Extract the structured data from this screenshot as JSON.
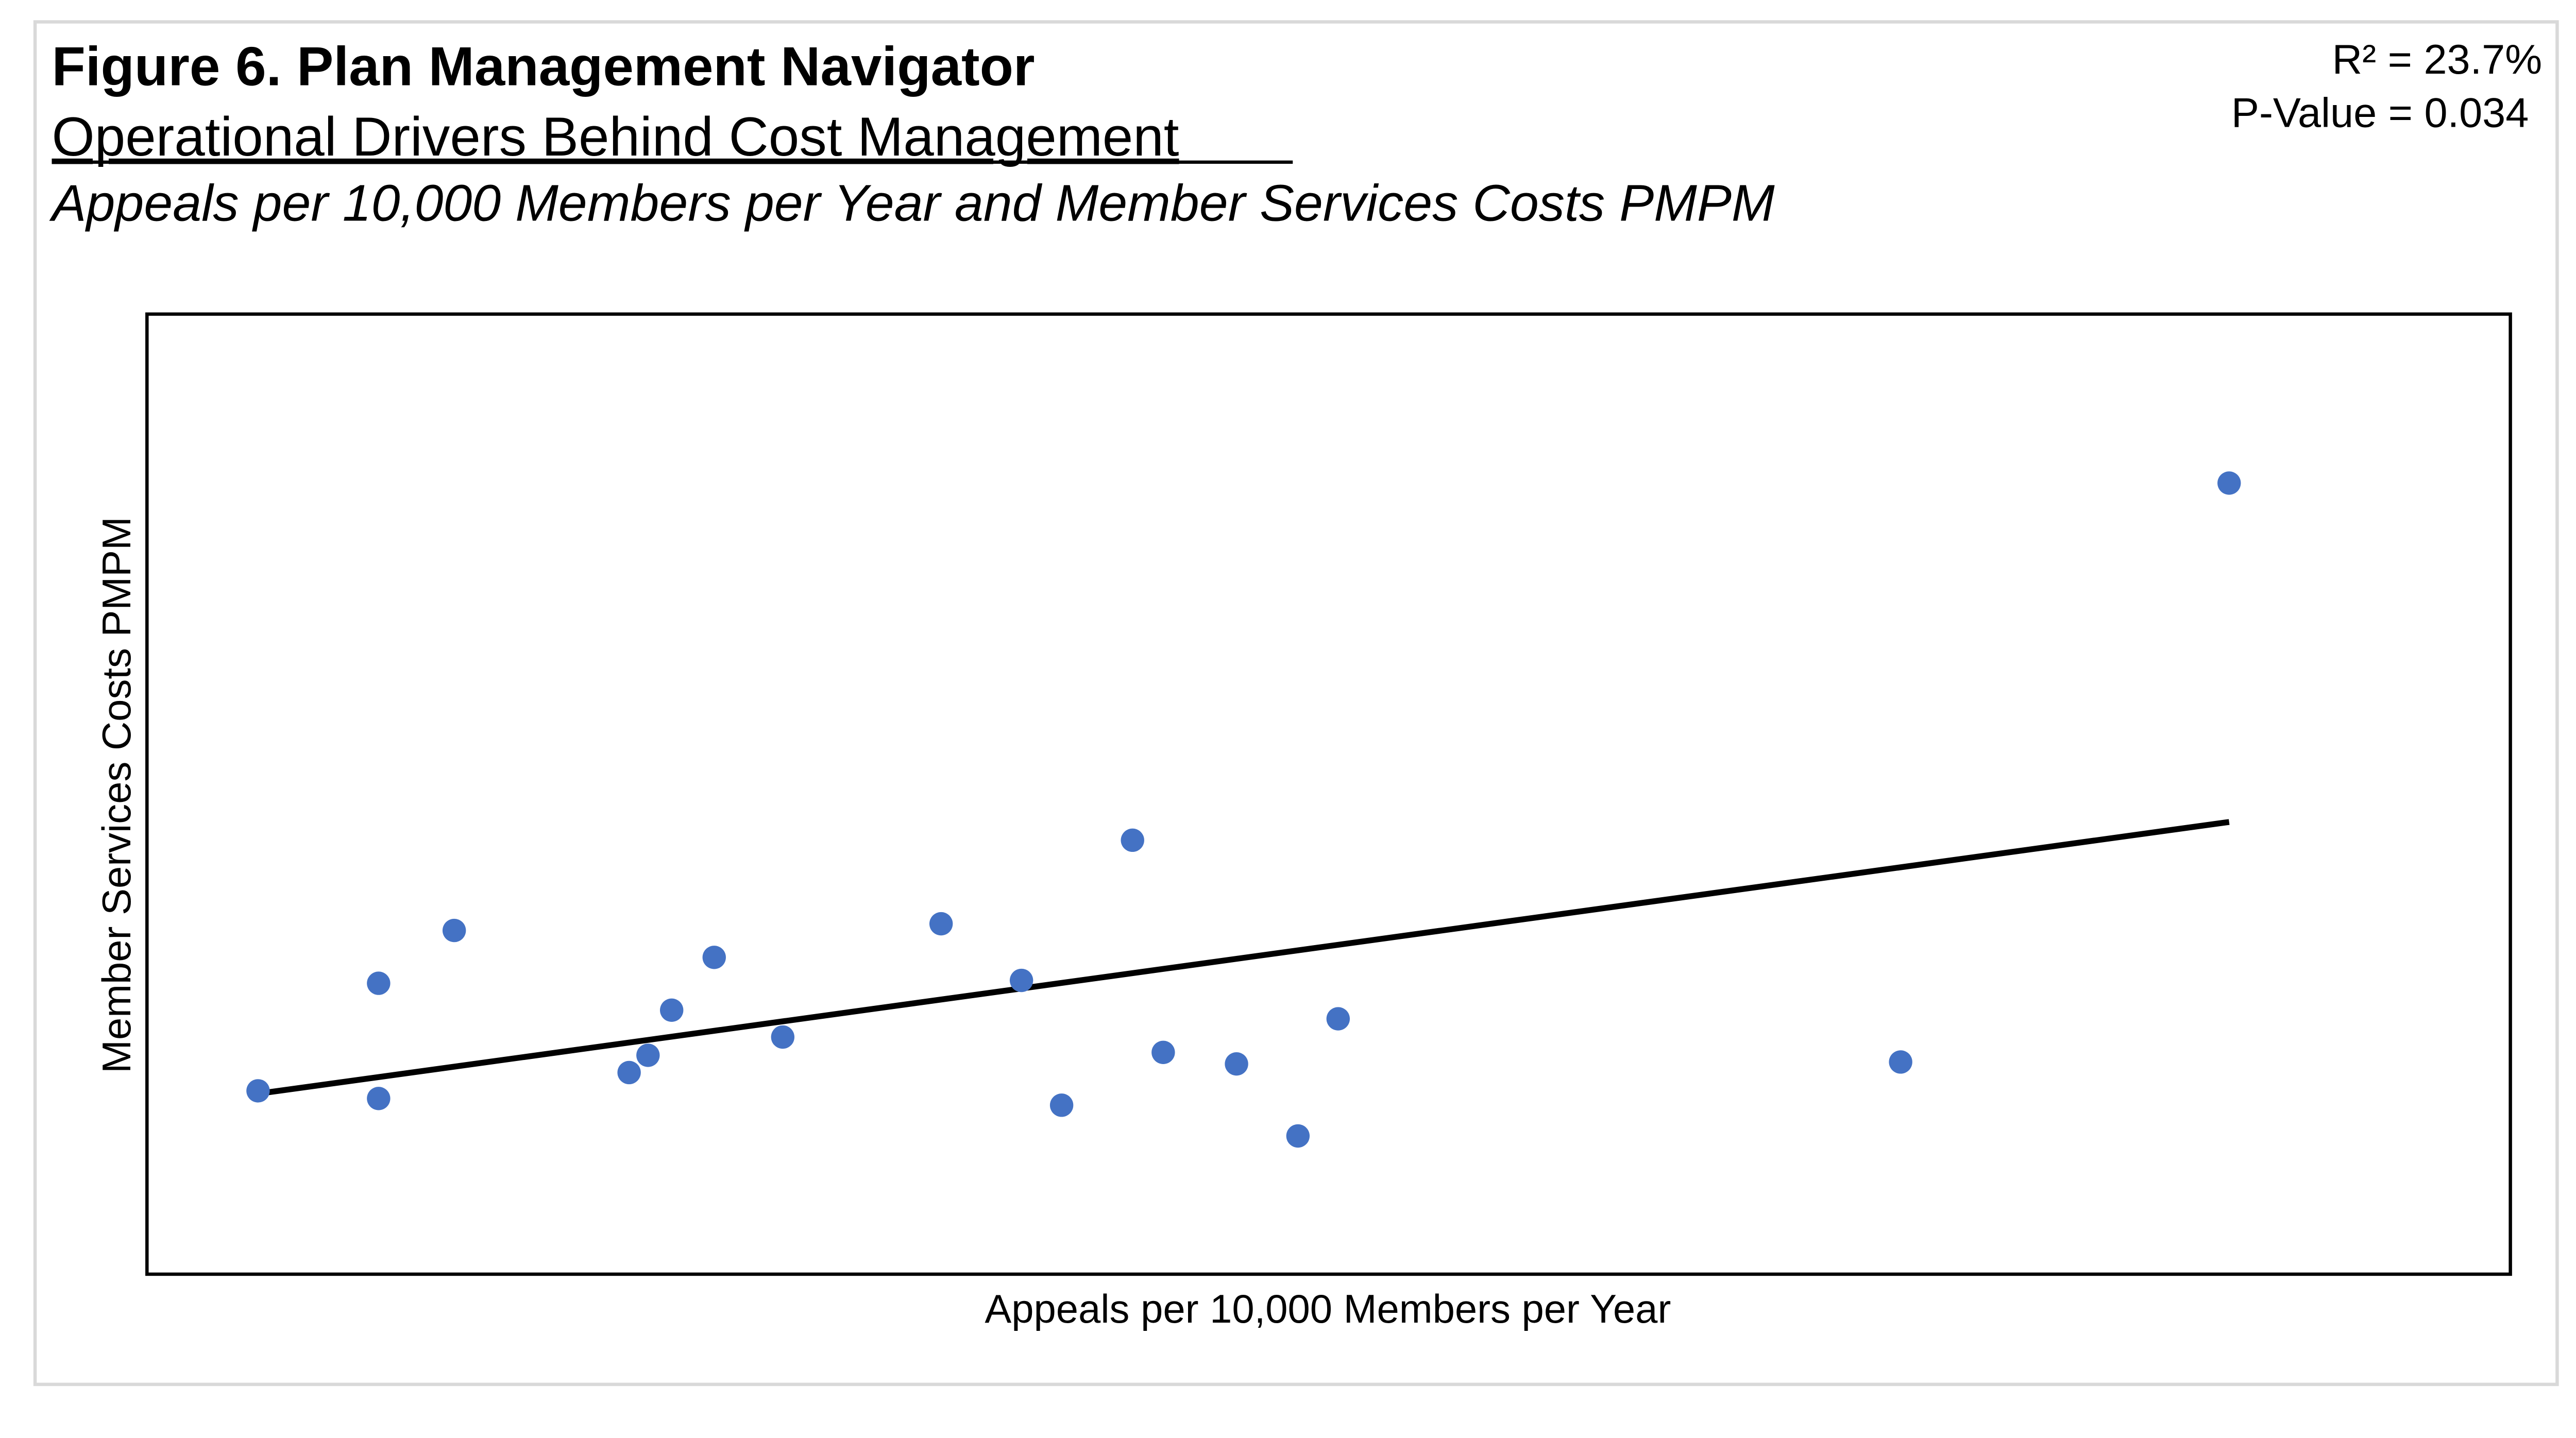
{
  "header": {
    "title": "Figure 6. Plan Management Navigator",
    "subtitle": "Operational Drivers Behind Cost Management",
    "description": "Appeals per 10,000 Members per Year and Member Services Costs PMPM"
  },
  "stats": {
    "r_squared": "R² = 23.7%",
    "p_value": "P-Value = 0.034"
  },
  "chart_data": {
    "type": "scatter",
    "title": "Appeals per 10,000 Members per Year and Member Services Costs PMPM",
    "xlabel": "Appeals per 10,000 Members per Year",
    "ylabel": "Member Services Costs PMPM",
    "xlim": [
      0,
      100
    ],
    "ylim": [
      0,
      100
    ],
    "ticks_shown": false,
    "grid": false,
    "legend": "none",
    "point_color": "#4472C4",
    "points": [
      {
        "x": 4.7,
        "y": 19.1
      },
      {
        "x": 9.8,
        "y": 30.3
      },
      {
        "x": 9.8,
        "y": 18.3
      },
      {
        "x": 13.0,
        "y": 35.8
      },
      {
        "x": 20.4,
        "y": 21.0
      },
      {
        "x": 21.2,
        "y": 22.8
      },
      {
        "x": 22.2,
        "y": 27.5
      },
      {
        "x": 24.0,
        "y": 33.0
      },
      {
        "x": 26.9,
        "y": 24.7
      },
      {
        "x": 33.6,
        "y": 36.5
      },
      {
        "x": 37.0,
        "y": 30.6
      },
      {
        "x": 38.7,
        "y": 17.6
      },
      {
        "x": 41.7,
        "y": 45.2
      },
      {
        "x": 43.0,
        "y": 23.1
      },
      {
        "x": 46.1,
        "y": 21.9
      },
      {
        "x": 48.7,
        "y": 14.4
      },
      {
        "x": 50.4,
        "y": 26.6
      },
      {
        "x": 74.2,
        "y": 22.1
      },
      {
        "x": 88.1,
        "y": 82.4
      }
    ],
    "trendline": {
      "type": "linear",
      "color": "#000000",
      "x": [
        4.7,
        88.1
      ],
      "y": [
        18.8,
        47.1
      ]
    }
  }
}
